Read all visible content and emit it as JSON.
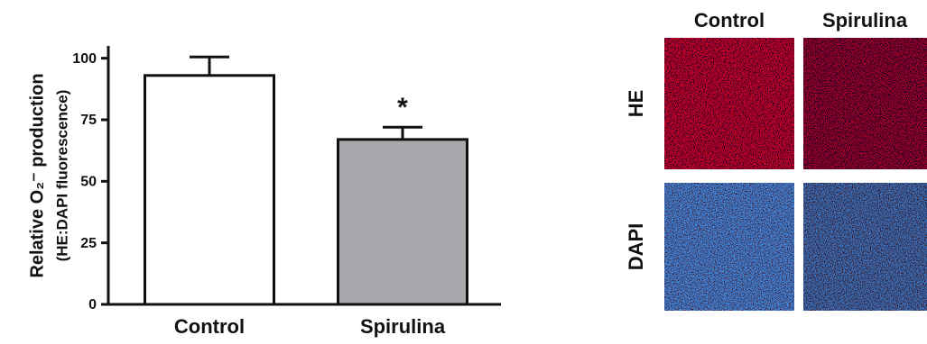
{
  "chart_data": {
    "type": "bar",
    "ylabel": "Relative O₂⁻ production",
    "ylabel2": "(HE:DAPI fluorescence)",
    "categories": [
      "Control",
      "Spirulina"
    ],
    "values": [
      93,
      67
    ],
    "errors": [
      7.5,
      5
    ],
    "colors": [
      "#ffffff",
      "#a7a9ac"
    ],
    "annotations": [
      "*"
    ],
    "ylim": [
      0,
      105
    ],
    "yticks": [
      0,
      25,
      50,
      75,
      100
    ]
  },
  "panels": {
    "columns": [
      "Control",
      "Spirulina"
    ],
    "rows": [
      "HE",
      "DAPI"
    ]
  }
}
